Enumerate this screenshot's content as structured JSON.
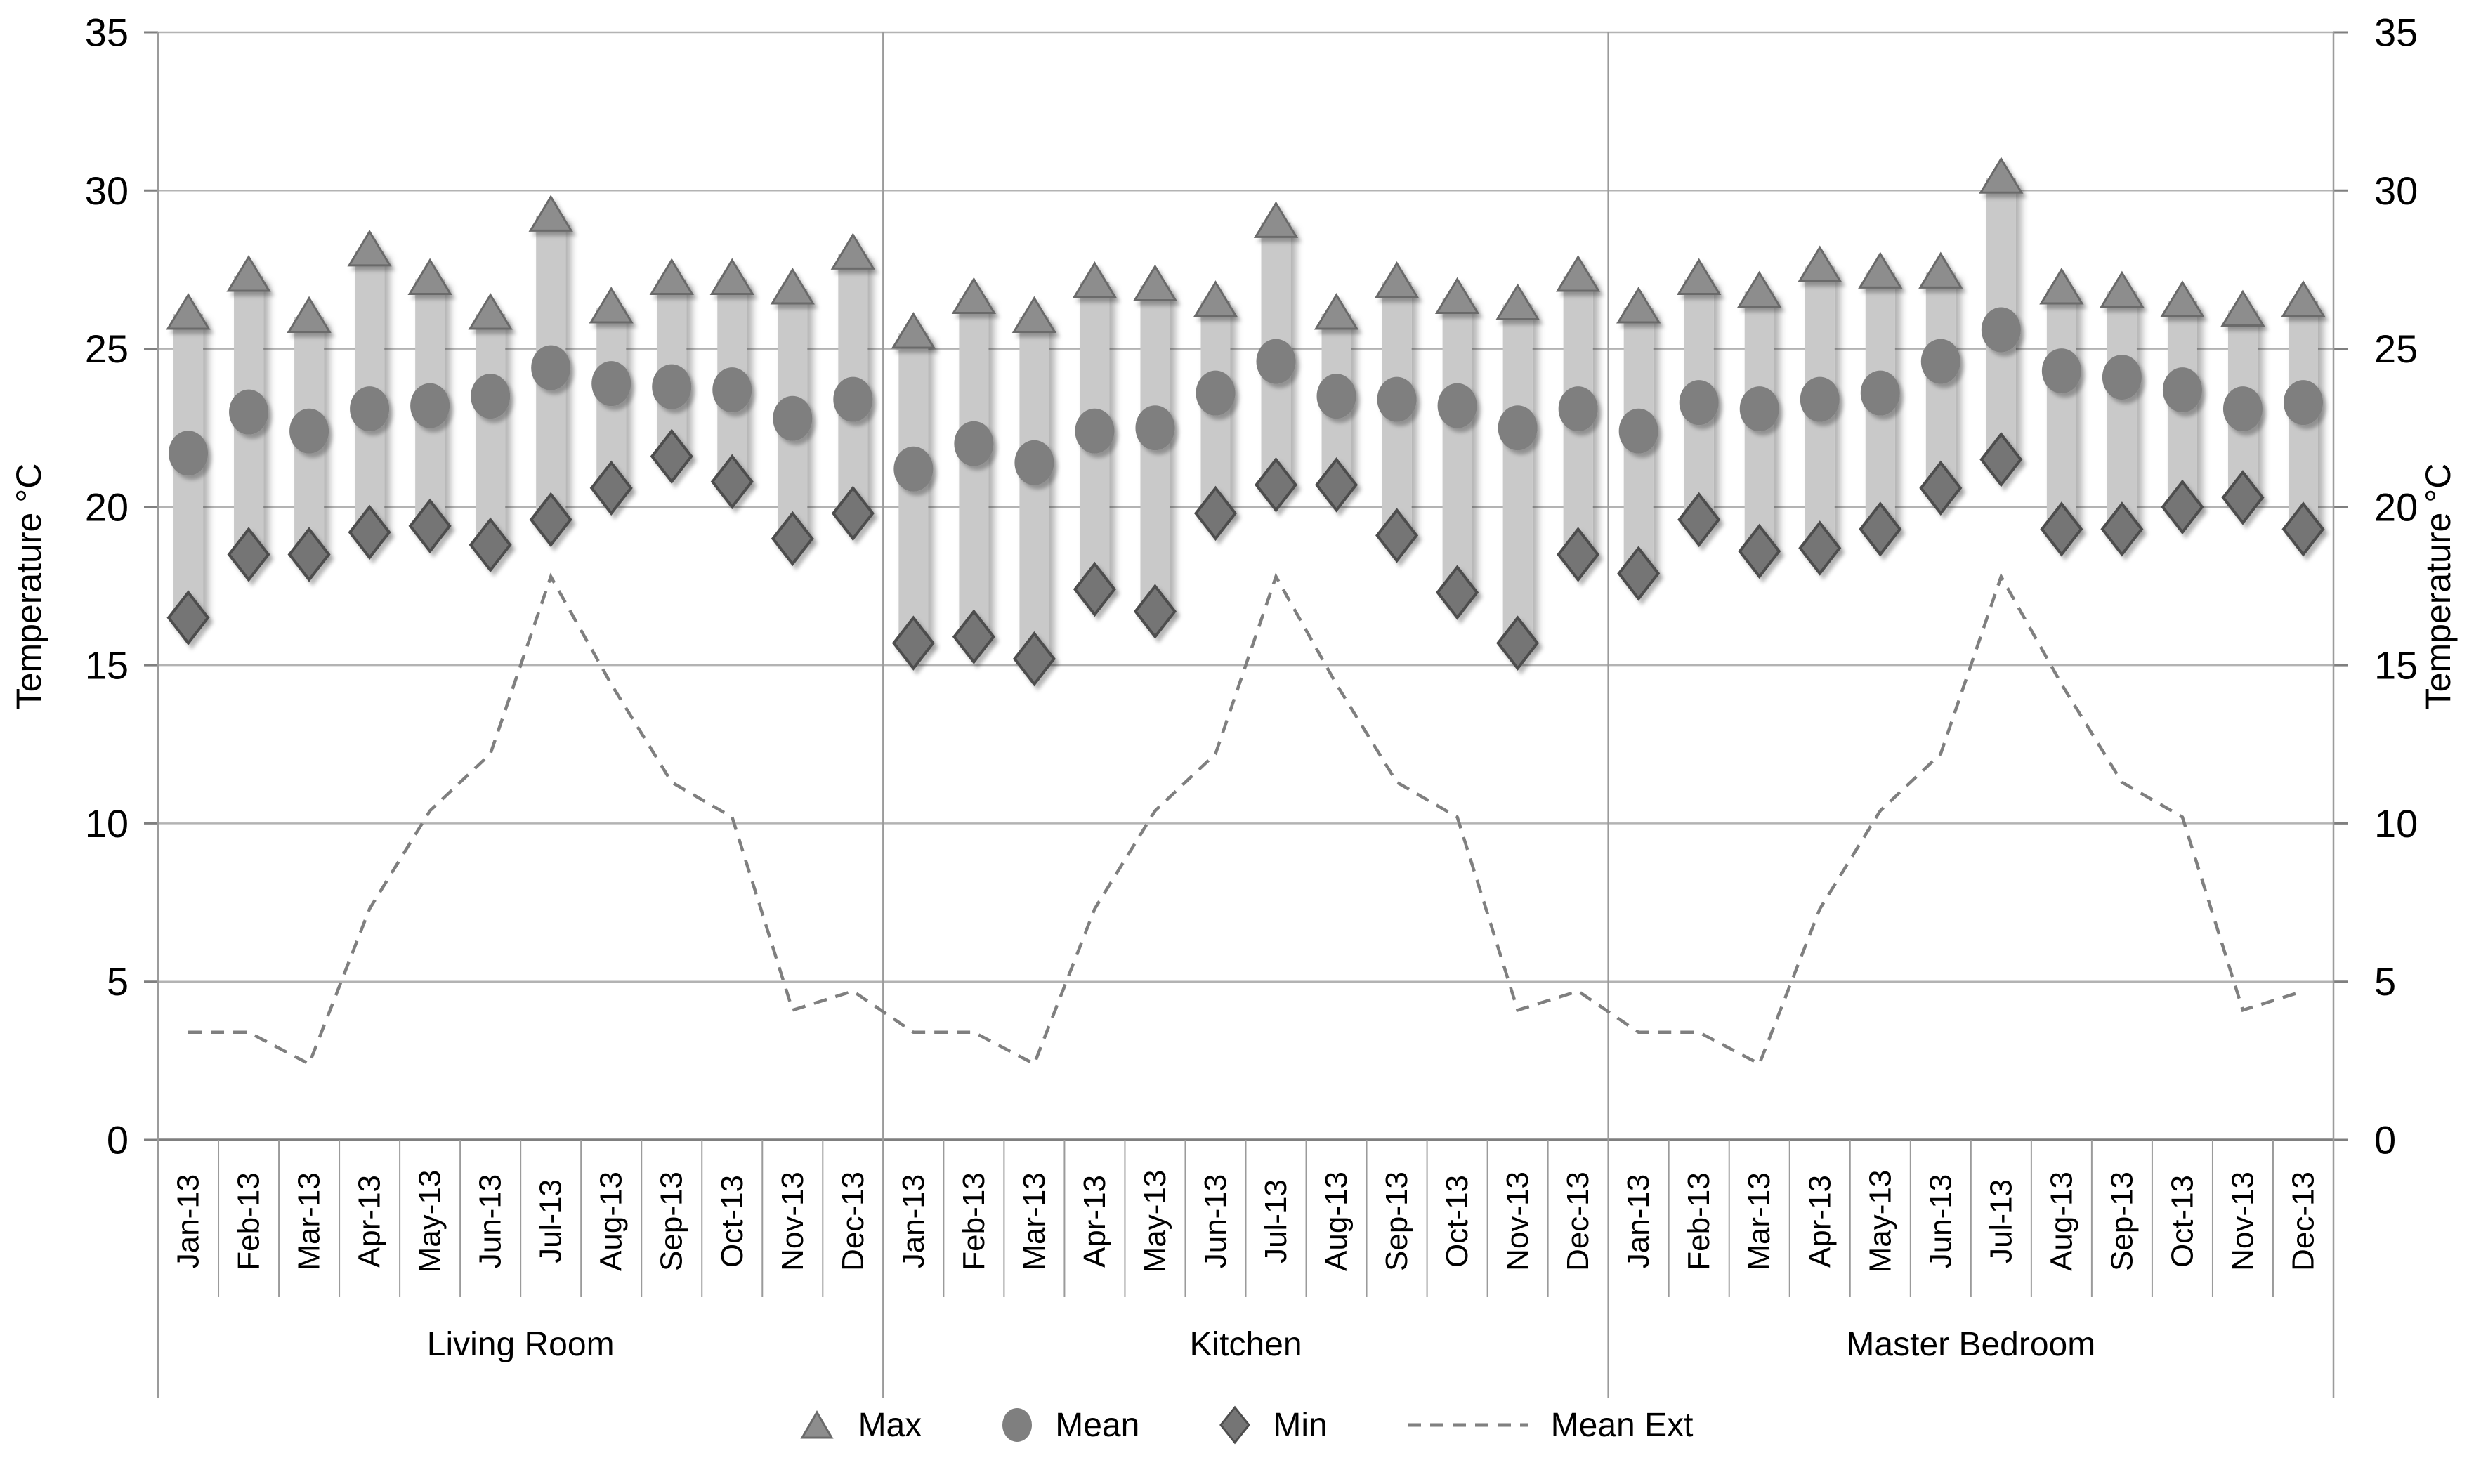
{
  "chart_data": {
    "type": "bar",
    "subtype": "floating-range-columns-with-markers-and-line",
    "title": "",
    "ylabel_left": "Temperature °C",
    "ylabel_right": "Temperature °C",
    "ylim": [
      0,
      35
    ],
    "yticks": [
      0,
      5,
      10,
      15,
      20,
      25,
      30,
      35
    ],
    "grid": "horizontal",
    "legend_position": "bottom-center",
    "categories": [
      "Jan-13",
      "Feb-13",
      "Mar-13",
      "Apr-13",
      "May-13",
      "Jun-13",
      "Jul-13",
      "Aug-13",
      "Sep-13",
      "Oct-13",
      "Nov-13",
      "Dec-13"
    ],
    "groups": [
      {
        "label": "Living Room",
        "max": [
          26.1,
          27.3,
          26.0,
          28.1,
          27.2,
          26.1,
          29.2,
          26.3,
          27.2,
          27.2,
          26.9,
          28.0
        ],
        "mean": [
          21.7,
          23.0,
          22.4,
          23.1,
          23.2,
          23.5,
          24.4,
          23.9,
          23.8,
          23.7,
          22.8,
          23.4
        ],
        "min": [
          16.5,
          18.5,
          18.5,
          19.2,
          19.4,
          18.8,
          19.6,
          20.6,
          21.6,
          20.8,
          19.0,
          19.8
        ]
      },
      {
        "label": "Kitchen",
        "max": [
          25.5,
          26.6,
          26.0,
          27.1,
          27.0,
          26.5,
          29.0,
          26.1,
          27.1,
          26.6,
          26.4,
          27.3
        ],
        "mean": [
          21.2,
          22.0,
          21.4,
          22.4,
          22.5,
          23.6,
          24.6,
          23.5,
          23.4,
          23.2,
          22.5,
          23.1
        ],
        "min": [
          15.7,
          15.9,
          15.2,
          17.4,
          16.7,
          19.8,
          20.7,
          20.7,
          19.1,
          17.3,
          15.7,
          18.5
        ]
      },
      {
        "label": "Master Bedroom",
        "max": [
          26.3,
          27.2,
          26.8,
          27.6,
          27.4,
          27.4,
          30.4,
          26.9,
          26.8,
          26.5,
          26.2,
          26.5
        ],
        "mean": [
          22.4,
          23.3,
          23.1,
          23.4,
          23.6,
          24.6,
          25.6,
          24.3,
          24.1,
          23.7,
          23.1,
          23.3
        ],
        "min": [
          17.9,
          19.6,
          18.6,
          18.7,
          19.3,
          20.6,
          21.5,
          19.3,
          19.3,
          20.0,
          20.3,
          19.3
        ]
      }
    ],
    "mean_ext": [
      3.4,
      3.4,
      2.4,
      7.3,
      10.4,
      12.2,
      17.8,
      14.4,
      11.3,
      10.2,
      4.1,
      4.7
    ],
    "legend": [
      {
        "marker": "triangle",
        "label": "Max"
      },
      {
        "marker": "circle",
        "label": "Mean"
      },
      {
        "marker": "diamond",
        "label": "Min"
      },
      {
        "marker": "dashed-line",
        "label": "Mean Ext"
      }
    ],
    "colors": {
      "bar_fill": "#c9c9c9",
      "triangle_fill": "#8d8d8d",
      "triangle_stroke": "#6a6a6a",
      "circle_fill": "#7f7f7f",
      "diamond_fill": "#757575",
      "diamond_stroke": "#4e4e4e",
      "dashed_line": "#7f7f7f",
      "gridline": "#b3b3b3",
      "axis_line": "#7f7f7f",
      "frame_line": "#9b9b9b",
      "text": "#000000"
    }
  }
}
